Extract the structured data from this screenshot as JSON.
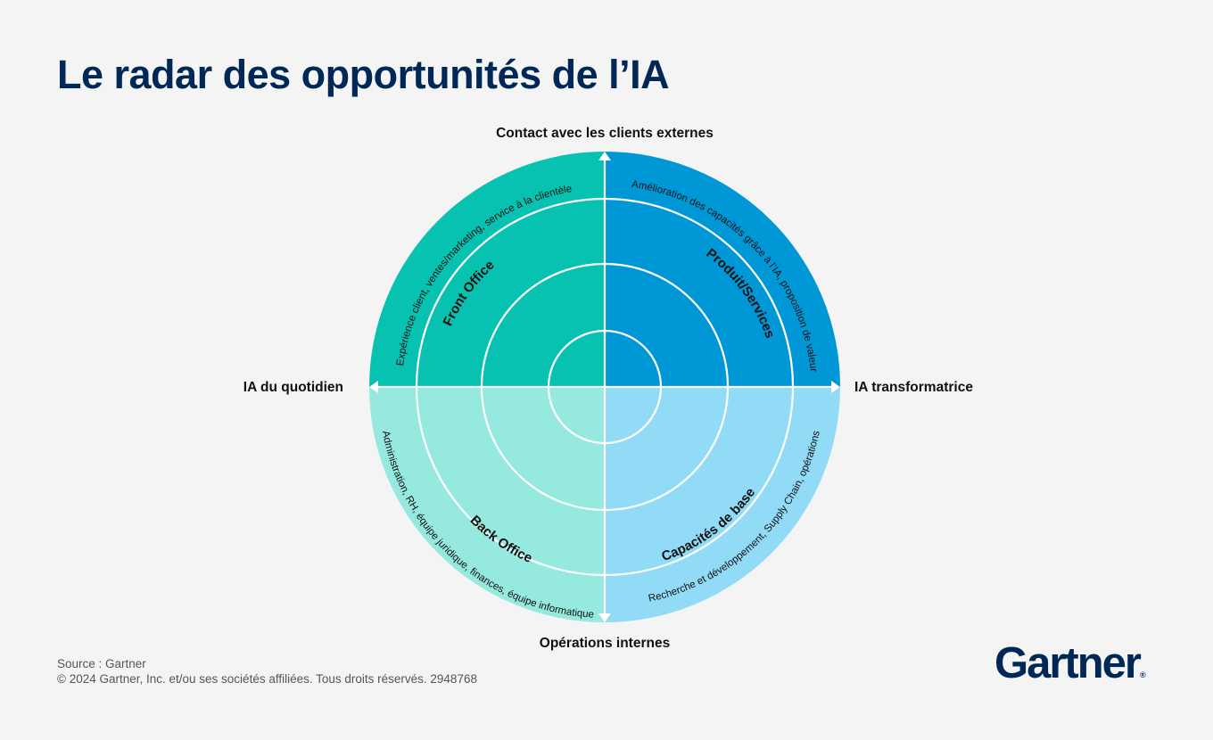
{
  "title": "Le radar des opportunités de l’IA",
  "axes": {
    "top": "Contact avec les clients externes",
    "bottom": "Opérations internes",
    "left": "IA du quotidien",
    "right": "IA transformatrice"
  },
  "quadrants": {
    "top_left": {
      "title": "Front Office",
      "subtitle": "Expérience client, ventes/marketing, service à la clientèle",
      "color": "#07c2b0"
    },
    "top_right": {
      "title": "Produit/Services",
      "subtitle": "Amélioration des capacités grâce à l’IA, proposition de valeur",
      "color": "#0097d6"
    },
    "bottom_left": {
      "title": "Back Office",
      "subtitle": "Administration, RH, équipe juridique, finances, équipe informatique",
      "color": "#95e9de"
    },
    "bottom_right": {
      "title": "Capacités de base",
      "subtitle": "Recherche et développement, Supply Chain, opérations",
      "color": "#91dbf6"
    }
  },
  "footer": {
    "source": "Source : Gartner",
    "copyright": "© 2024 Gartner, Inc. et/ou ses sociétés affiliées. Tous droits réservés. 2948768"
  },
  "logo": {
    "text": "Gartner",
    "mark": "®"
  }
}
